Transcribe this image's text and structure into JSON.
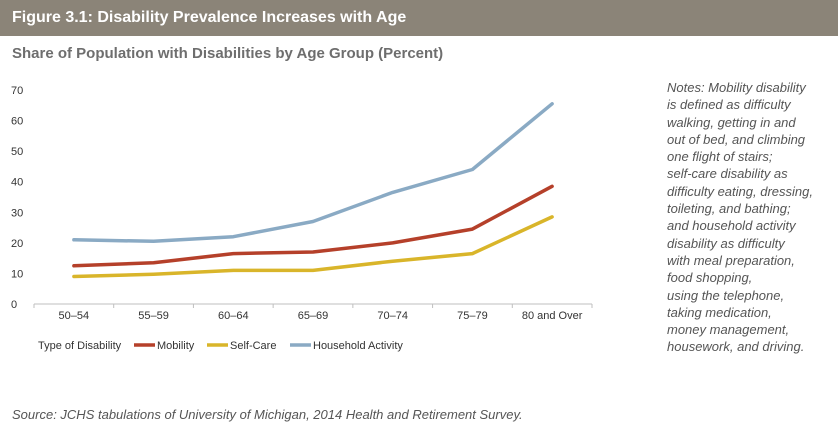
{
  "figure": {
    "title": "Figure 3.1: Disability Prevalence Increases with Age",
    "header_color": "#8b8478"
  },
  "chart_data": {
    "type": "line",
    "title": "Share of Population with Disabilities by Age Group (Percent)",
    "xlabel": "",
    "ylabel": "",
    "categories": [
      "50–54",
      "55–59",
      "60–64",
      "65–69",
      "70–74",
      "75–79",
      "80 and Over"
    ],
    "ylim": [
      0,
      70
    ],
    "yticks": [
      0,
      10,
      20,
      30,
      40,
      50,
      60,
      70
    ],
    "grid": false,
    "legend_title": "Type of Disability",
    "legend_position": "bottom-left",
    "series": [
      {
        "name": "Mobility",
        "color": "#b5402a",
        "values": [
          12.5,
          13.5,
          16.5,
          17,
          20,
          24.5,
          38.5
        ]
      },
      {
        "name": "Self-Care",
        "color": "#d9b52a",
        "values": [
          9,
          9.7,
          11,
          11,
          14,
          16.5,
          28.5
        ]
      },
      {
        "name": "Household Activity",
        "color": "#8aaac4",
        "values": [
          21,
          20.5,
          22,
          27,
          36.5,
          44,
          65.5
        ]
      }
    ]
  },
  "notes": {
    "lines": [
      "Notes: Mobility disability",
      "is defined as difficulty",
      "walking, getting in and",
      "out of bed, and climbing",
      "one flight of stairs;",
      "self-care disability as",
      "difficulty eating, dressing,",
      "toileting, and bathing;",
      "and household activity",
      "disability as difficulty",
      "with meal preparation,",
      "food shopping,",
      "using the telephone,",
      "taking medication,",
      "money management,",
      "housework, and driving."
    ]
  },
  "source": "Source: JCHS tabulations of University of Michigan, 2014 Health and Retirement Survey."
}
